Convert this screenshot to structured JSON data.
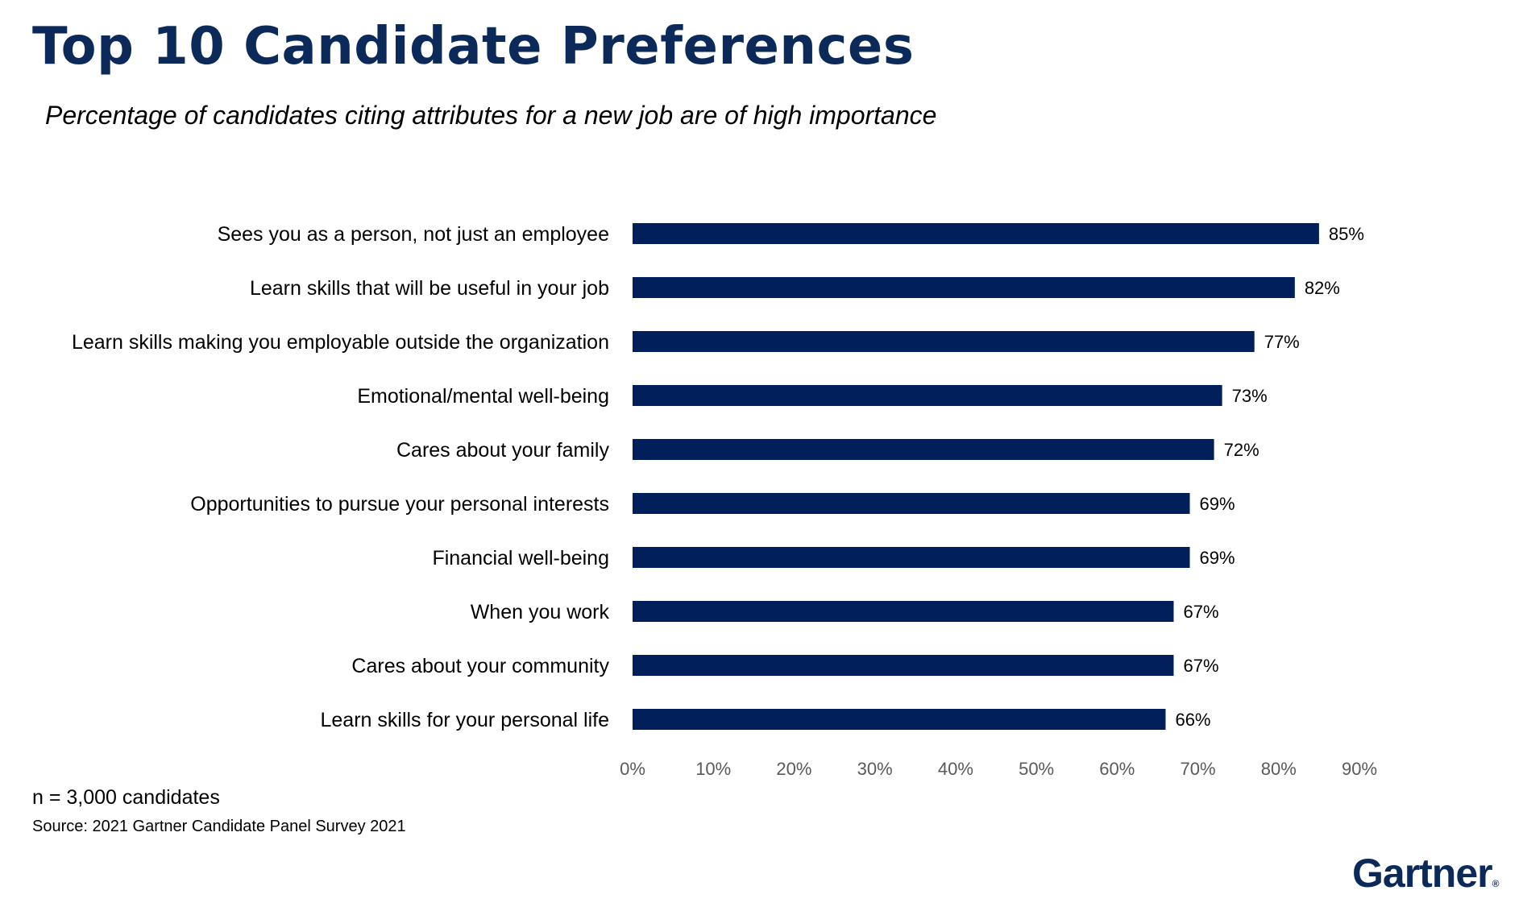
{
  "page": {
    "title": "Top 10 Candidate Preferences",
    "subtitle": "Percentage of candidates citing attributes for a new job are of high importance",
    "note": "n = 3,000 candidates",
    "source": "Source: 2021 Gartner Candidate Panel Survey 2021",
    "logo_text": "Gartner",
    "logo_mark": "®"
  },
  "colors": {
    "bar": "#001f5b",
    "title": "#0b2a5a",
    "tick_text": "#595959"
  },
  "chart_data": {
    "type": "bar",
    "orientation": "horizontal",
    "categories": [
      "Sees you as a person, not just an employee",
      "Learn skills that will be useful in your job",
      "Learn skills making you employable outside the organization",
      "Emotional/mental well-being",
      "Cares about your family",
      "Opportunities to pursue your personal interests",
      "Financial well-being",
      "When you work",
      "Cares about your community",
      "Learn skills for your personal life"
    ],
    "values": [
      85,
      82,
      77,
      73,
      72,
      69,
      69,
      67,
      67,
      66
    ],
    "value_labels": [
      "85%",
      "82%",
      "77%",
      "73%",
      "72%",
      "69%",
      "69%",
      "67%",
      "67%",
      "66%"
    ],
    "xlim": [
      0,
      90
    ],
    "x_ticks": [
      0,
      10,
      20,
      30,
      40,
      50,
      60,
      70,
      80,
      90
    ],
    "x_tick_labels": [
      "0%",
      "10%",
      "20%",
      "30%",
      "40%",
      "50%",
      "60%",
      "70%",
      "80%",
      "90%"
    ],
    "title": "Top 10 Candidate Preferences",
    "subtitle": "Percentage of candidates citing attributes for a new job are of high importance",
    "grid": false,
    "legend": "none"
  }
}
